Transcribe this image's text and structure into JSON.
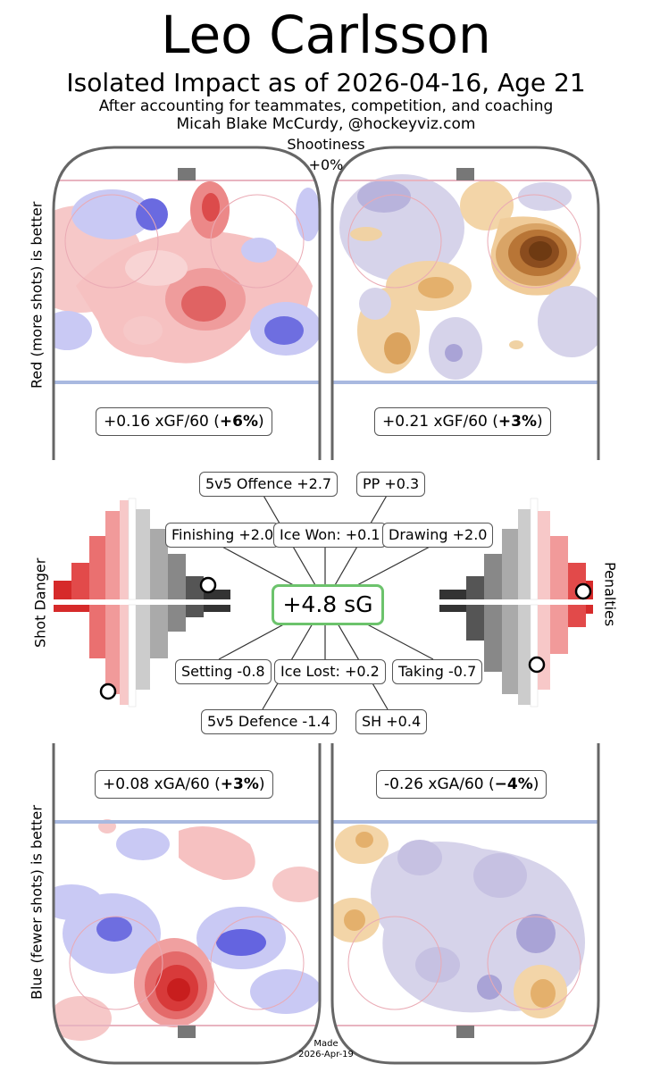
{
  "header": {
    "title": "Leo Carlsson",
    "subtitle": "Isolated Impact as of 2026-04-16, Age 21",
    "note_line1": "After accounting for teammates, competition, and coaching",
    "note_line2": "Micah Blake McCurdy, @hockeyviz.com"
  },
  "shootiness": {
    "label": "Shootiness",
    "value": "+0%"
  },
  "side_labels": {
    "top": "Red (more shots) is better",
    "bottom": "Blue (fewer shots) is better",
    "left": "Shot Danger",
    "right": "Penalties"
  },
  "rink_stats": {
    "ev_offence": {
      "value": "+0.16 xGF/60",
      "pct": "+6%"
    },
    "pp_offence": {
      "value": "+0.21 xGF/60",
      "pct": "+3%"
    },
    "ev_defence": {
      "value": "+0.08 xGA/60",
      "pct": "+3%"
    },
    "sh_defence": {
      "value": "-0.26 xGA/60",
      "pct": "−4%"
    }
  },
  "components": {
    "total": "+4.8 sG",
    "ev_offence": "5v5 Offence +2.7",
    "pp": "PP +0.3",
    "finishing": "Finishing +2.0",
    "ice_won": "Ice Won: +0.1",
    "drawing": "Drawing +2.0",
    "setting": "Setting -0.8",
    "ice_lost": "Ice Lost: +0.2",
    "taking": "Taking -0.7",
    "ev_defence": "5v5 Defence -1.4",
    "sh": "SH +0.4"
  },
  "footer": {
    "made_label": "Made",
    "made_date": "2026-Apr-19"
  },
  "colors": {
    "red_dark": "#d62a2a",
    "red_light": "#f4b8b8",
    "blue_dark": "#3a3ad0",
    "blue_light": "#c8c8f4",
    "orange_dark": "#6e3a12",
    "orange_light": "#f0cfa0",
    "purple_light": "#d6d3ea",
    "grey_dark": "#333333",
    "grey_light": "#cccccc",
    "total_border": "#6cc36c",
    "blue_line": "#a9b9e0",
    "red_line": "#e8b4c0"
  },
  "chart_data": {
    "type": "heatmap",
    "panels": [
      {
        "panel": "5v5 offence",
        "stat": "+0.16 xGF/60",
        "pct": "+6%"
      },
      {
        "panel": "power play offence",
        "stat": "+0.21 xGF/60",
        "pct": "+3%"
      },
      {
        "panel": "5v5 defence",
        "stat": "+0.08 xGA/60",
        "pct": "+3%"
      },
      {
        "panel": "short-handed defence",
        "stat": "-0.26 xGA/60",
        "pct": "−4%"
      }
    ],
    "impact_components": [
      {
        "label": "5v5 Offence",
        "value": 2.7
      },
      {
        "label": "PP",
        "value": 0.3
      },
      {
        "label": "Finishing",
        "value": 2.0
      },
      {
        "label": "Ice Won",
        "value": 0.1
      },
      {
        "label": "Drawing",
        "value": 2.0
      },
      {
        "label": "Setting",
        "value": -0.8
      },
      {
        "label": "Ice Lost",
        "value": 0.2
      },
      {
        "label": "Taking",
        "value": -0.7
      },
      {
        "label": "5v5 Defence",
        "value": -1.4
      },
      {
        "label": "SH",
        "value": 0.4
      }
    ],
    "total": 4.8
  }
}
